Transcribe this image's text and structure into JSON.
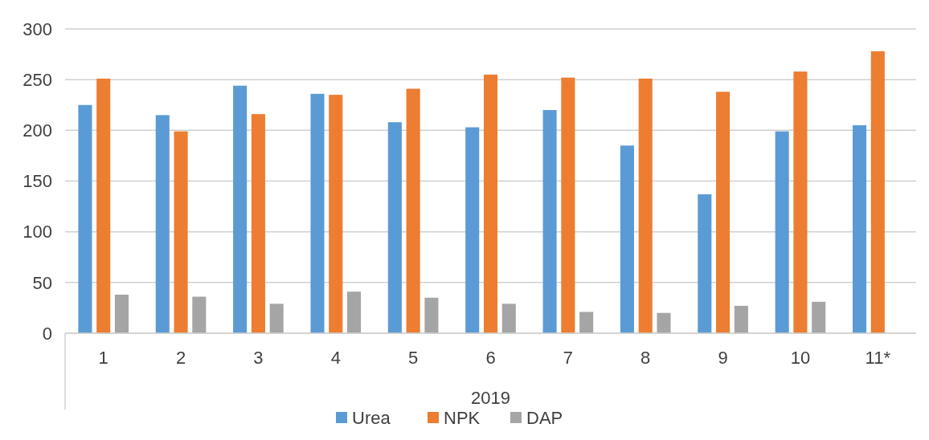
{
  "chart_data": {
    "type": "bar",
    "xlabel": "2019",
    "categories": [
      "1",
      "2",
      "3",
      "4",
      "5",
      "6",
      "7",
      "8",
      "9",
      "10",
      "11*"
    ],
    "series": [
      {
        "name": "Urea",
        "color": "#5b9bd5",
        "values": [
          225,
          215,
          244,
          236,
          208,
          203,
          220,
          185,
          137,
          199,
          205
        ]
      },
      {
        "name": "NPK",
        "color": "#ed7d31",
        "values": [
          251,
          199,
          216,
          235,
          241,
          255,
          252,
          251,
          238,
          258,
          278
        ]
      },
      {
        "name": "DAP",
        "color": "#a5a5a5",
        "values": [
          38,
          36,
          29,
          41,
          35,
          29,
          21,
          20,
          27,
          31,
          null
        ]
      }
    ],
    "ylim": [
      0,
      300
    ],
    "yticks": [
      0,
      50,
      100,
      150,
      200,
      250,
      300
    ],
    "grid": "y",
    "legend": "bottom"
  }
}
